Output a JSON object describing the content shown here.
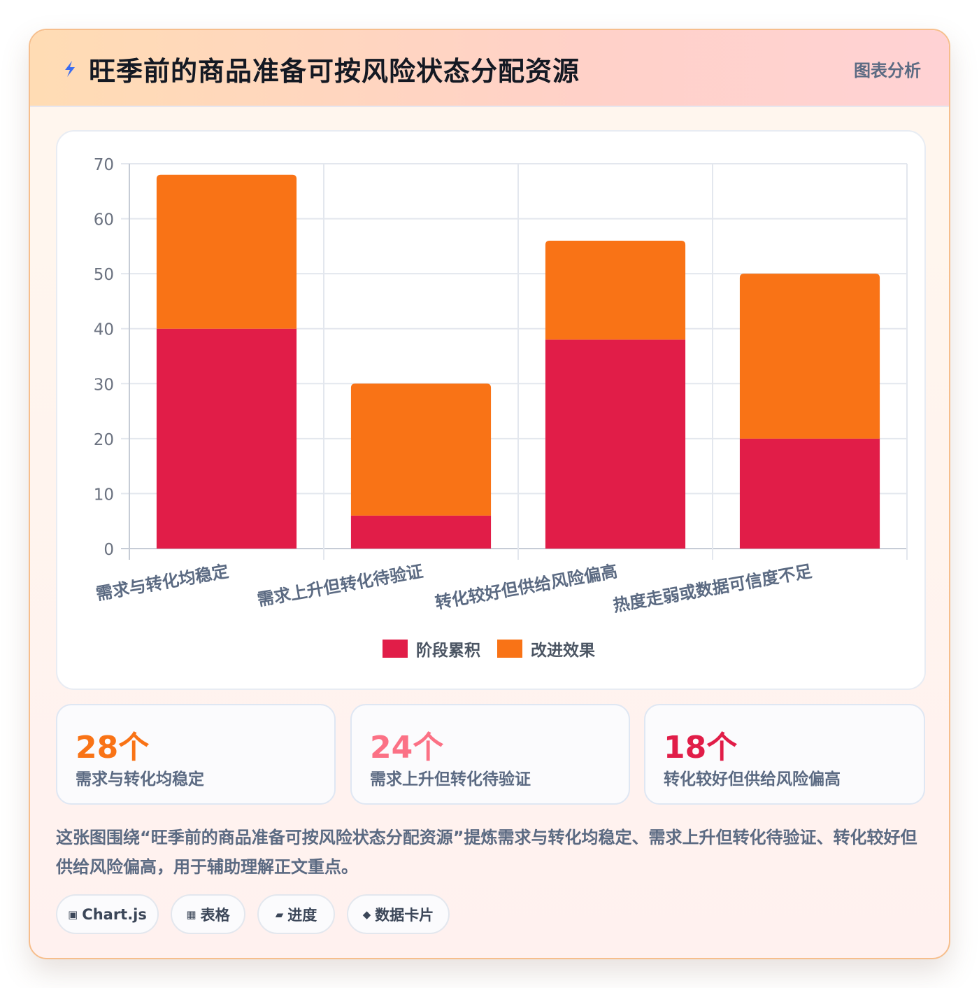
{
  "header": {
    "title": "旺季前的商品准备可按风险状态分配资源",
    "tag": "图表分析",
    "icon": "lightning-icon"
  },
  "chart_data": {
    "type": "bar",
    "stacked": true,
    "categories": [
      "需求与转化均稳定",
      "需求上升但转化待验证",
      "转化较好但供给风险偏高",
      "热度走弱或数据可信度不足"
    ],
    "series": [
      {
        "name": "阶段累积",
        "values": [
          40,
          6,
          38,
          20
        ],
        "color": "#e11d48"
      },
      {
        "name": "改进效果",
        "values": [
          28,
          24,
          18,
          30
        ],
        "color": "#f97316"
      }
    ],
    "ylim": [
      0,
      70
    ],
    "yticks": [
      0,
      10,
      20,
      30,
      40,
      50,
      60,
      70
    ],
    "grid": true,
    "legend": "bottom"
  },
  "stats": [
    {
      "value": "28个",
      "label": "需求与转化均稳定",
      "color": "#f97316"
    },
    {
      "value": "24个",
      "label": "需求上升但转化待验证",
      "color": "#fb7185"
    },
    {
      "value": "18个",
      "label": "转化较好但供给风险偏高",
      "color": "#e11d48"
    }
  ],
  "description": "这张图围绕“旺季前的商品准备可按风险状态分配资源”提炼需求与转化均稳定、需求上升但转化待验证、转化较好但供给风险偏高，用于辅助理解正文重点。",
  "chips": [
    {
      "glyph": "▣",
      "label": "Chart.js"
    },
    {
      "glyph": "▦",
      "label": "表格"
    },
    {
      "glyph": "▰",
      "label": "进度"
    },
    {
      "glyph": "◆",
      "label": "数据卡片"
    }
  ]
}
